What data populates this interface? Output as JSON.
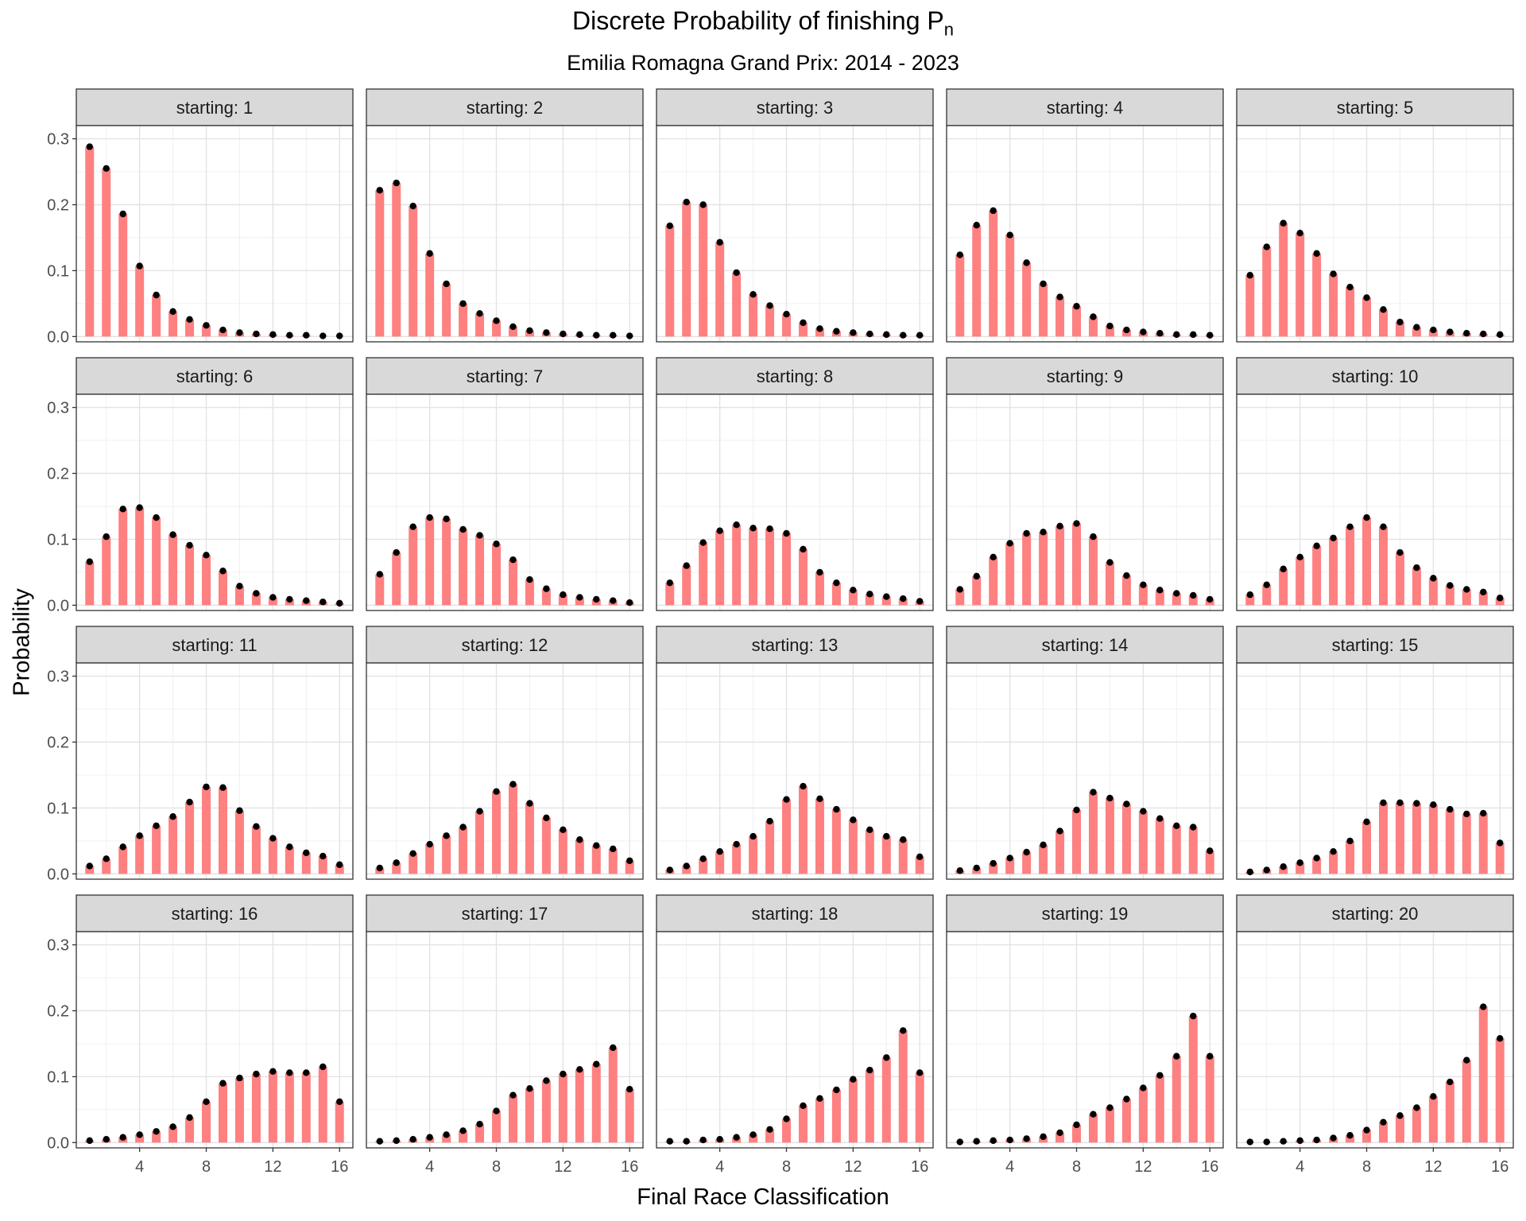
{
  "chart_data": {
    "type": "bar",
    "title": "Discrete Probability of finishing P",
    "title_subscript": "n",
    "subtitle": "Emilia Romagna Grand Prix: 2014 - 2023",
    "xlabel": "Final Race Classification",
    "ylabel": "Probability",
    "facet_label_prefix": "starting: ",
    "x": [
      1,
      2,
      3,
      4,
      5,
      6,
      7,
      8,
      9,
      10,
      11,
      12,
      13,
      14,
      15,
      16
    ],
    "x_ticks": [
      4,
      8,
      12,
      16
    ],
    "y_ticks": [
      0.0,
      0.1,
      0.2,
      0.3
    ],
    "y_tick_labels": [
      "0.0",
      "0.1",
      "0.2",
      "0.3"
    ],
    "ylim": [
      -0.008,
      0.32
    ],
    "xlim": [
      0.2,
      16.8
    ],
    "grid": true,
    "bar_color": "#ff8080",
    "point_color": "#000000",
    "panels": [
      {
        "starting": 1,
        "values": [
          0.288,
          0.255,
          0.186,
          0.107,
          0.063,
          0.038,
          0.026,
          0.017,
          0.01,
          0.006,
          0.004,
          0.003,
          0.002,
          0.002,
          0.001,
          0.001
        ]
      },
      {
        "starting": 2,
        "values": [
          0.222,
          0.233,
          0.198,
          0.126,
          0.08,
          0.05,
          0.035,
          0.024,
          0.015,
          0.009,
          0.006,
          0.004,
          0.003,
          0.002,
          0.002,
          0.001
        ]
      },
      {
        "starting": 3,
        "values": [
          0.168,
          0.204,
          0.2,
          0.143,
          0.097,
          0.064,
          0.047,
          0.034,
          0.021,
          0.012,
          0.008,
          0.006,
          0.004,
          0.003,
          0.002,
          0.002
        ]
      },
      {
        "starting": 4,
        "values": [
          0.124,
          0.169,
          0.191,
          0.154,
          0.112,
          0.08,
          0.06,
          0.046,
          0.03,
          0.016,
          0.01,
          0.007,
          0.005,
          0.003,
          0.003,
          0.002
        ]
      },
      {
        "starting": 5,
        "values": [
          0.093,
          0.136,
          0.172,
          0.157,
          0.126,
          0.095,
          0.075,
          0.059,
          0.041,
          0.022,
          0.014,
          0.01,
          0.007,
          0.005,
          0.004,
          0.003
        ]
      },
      {
        "starting": 6,
        "values": [
          0.066,
          0.104,
          0.146,
          0.148,
          0.133,
          0.107,
          0.091,
          0.076,
          0.052,
          0.029,
          0.018,
          0.012,
          0.009,
          0.007,
          0.005,
          0.003
        ]
      },
      {
        "starting": 7,
        "values": [
          0.047,
          0.08,
          0.119,
          0.133,
          0.131,
          0.115,
          0.106,
          0.093,
          0.069,
          0.039,
          0.025,
          0.016,
          0.012,
          0.009,
          0.007,
          0.004
        ]
      },
      {
        "starting": 8,
        "values": [
          0.034,
          0.06,
          0.095,
          0.113,
          0.122,
          0.117,
          0.116,
          0.109,
          0.085,
          0.05,
          0.034,
          0.023,
          0.017,
          0.013,
          0.01,
          0.006
        ]
      },
      {
        "starting": 9,
        "values": [
          0.024,
          0.044,
          0.073,
          0.094,
          0.109,
          0.111,
          0.12,
          0.124,
          0.104,
          0.065,
          0.045,
          0.031,
          0.023,
          0.018,
          0.015,
          0.009
        ]
      },
      {
        "starting": 10,
        "values": [
          0.016,
          0.031,
          0.055,
          0.073,
          0.09,
          0.102,
          0.119,
          0.133,
          0.119,
          0.08,
          0.057,
          0.041,
          0.03,
          0.024,
          0.02,
          0.011
        ]
      },
      {
        "starting": 11,
        "values": [
          0.012,
          0.023,
          0.041,
          0.058,
          0.073,
          0.087,
          0.109,
          0.132,
          0.131,
          0.096,
          0.072,
          0.054,
          0.041,
          0.032,
          0.027,
          0.014
        ]
      },
      {
        "starting": 12,
        "values": [
          0.009,
          0.017,
          0.031,
          0.045,
          0.058,
          0.071,
          0.095,
          0.125,
          0.136,
          0.107,
          0.085,
          0.067,
          0.052,
          0.043,
          0.038,
          0.02
        ]
      },
      {
        "starting": 13,
        "values": [
          0.006,
          0.012,
          0.023,
          0.034,
          0.045,
          0.057,
          0.08,
          0.113,
          0.133,
          0.114,
          0.098,
          0.082,
          0.067,
          0.057,
          0.052,
          0.026
        ]
      },
      {
        "starting": 14,
        "values": [
          0.005,
          0.009,
          0.016,
          0.024,
          0.033,
          0.044,
          0.065,
          0.097,
          0.124,
          0.115,
          0.106,
          0.095,
          0.084,
          0.073,
          0.071,
          0.035
        ]
      },
      {
        "starting": 15,
        "values": [
          0.003,
          0.006,
          0.011,
          0.017,
          0.024,
          0.034,
          0.05,
          0.079,
          0.108,
          0.108,
          0.107,
          0.105,
          0.098,
          0.091,
          0.092,
          0.047
        ]
      },
      {
        "starting": 16,
        "values": [
          0.003,
          0.005,
          0.008,
          0.012,
          0.017,
          0.024,
          0.038,
          0.062,
          0.09,
          0.098,
          0.104,
          0.108,
          0.106,
          0.106,
          0.115,
          0.062
        ]
      },
      {
        "starting": 17,
        "values": [
          0.002,
          0.003,
          0.005,
          0.008,
          0.012,
          0.018,
          0.028,
          0.048,
          0.072,
          0.082,
          0.094,
          0.104,
          0.111,
          0.119,
          0.144,
          0.081
        ]
      },
      {
        "starting": 18,
        "values": [
          0.002,
          0.002,
          0.004,
          0.005,
          0.008,
          0.012,
          0.02,
          0.036,
          0.056,
          0.067,
          0.08,
          0.096,
          0.11,
          0.129,
          0.17,
          0.106
        ]
      },
      {
        "starting": 19,
        "values": [
          0.001,
          0.002,
          0.003,
          0.004,
          0.006,
          0.009,
          0.015,
          0.027,
          0.043,
          0.053,
          0.066,
          0.083,
          0.102,
          0.131,
          0.192,
          0.131
        ]
      },
      {
        "starting": 20,
        "values": [
          0.001,
          0.001,
          0.002,
          0.003,
          0.004,
          0.007,
          0.011,
          0.019,
          0.031,
          0.041,
          0.053,
          0.07,
          0.092,
          0.125,
          0.206,
          0.158
        ]
      }
    ]
  }
}
